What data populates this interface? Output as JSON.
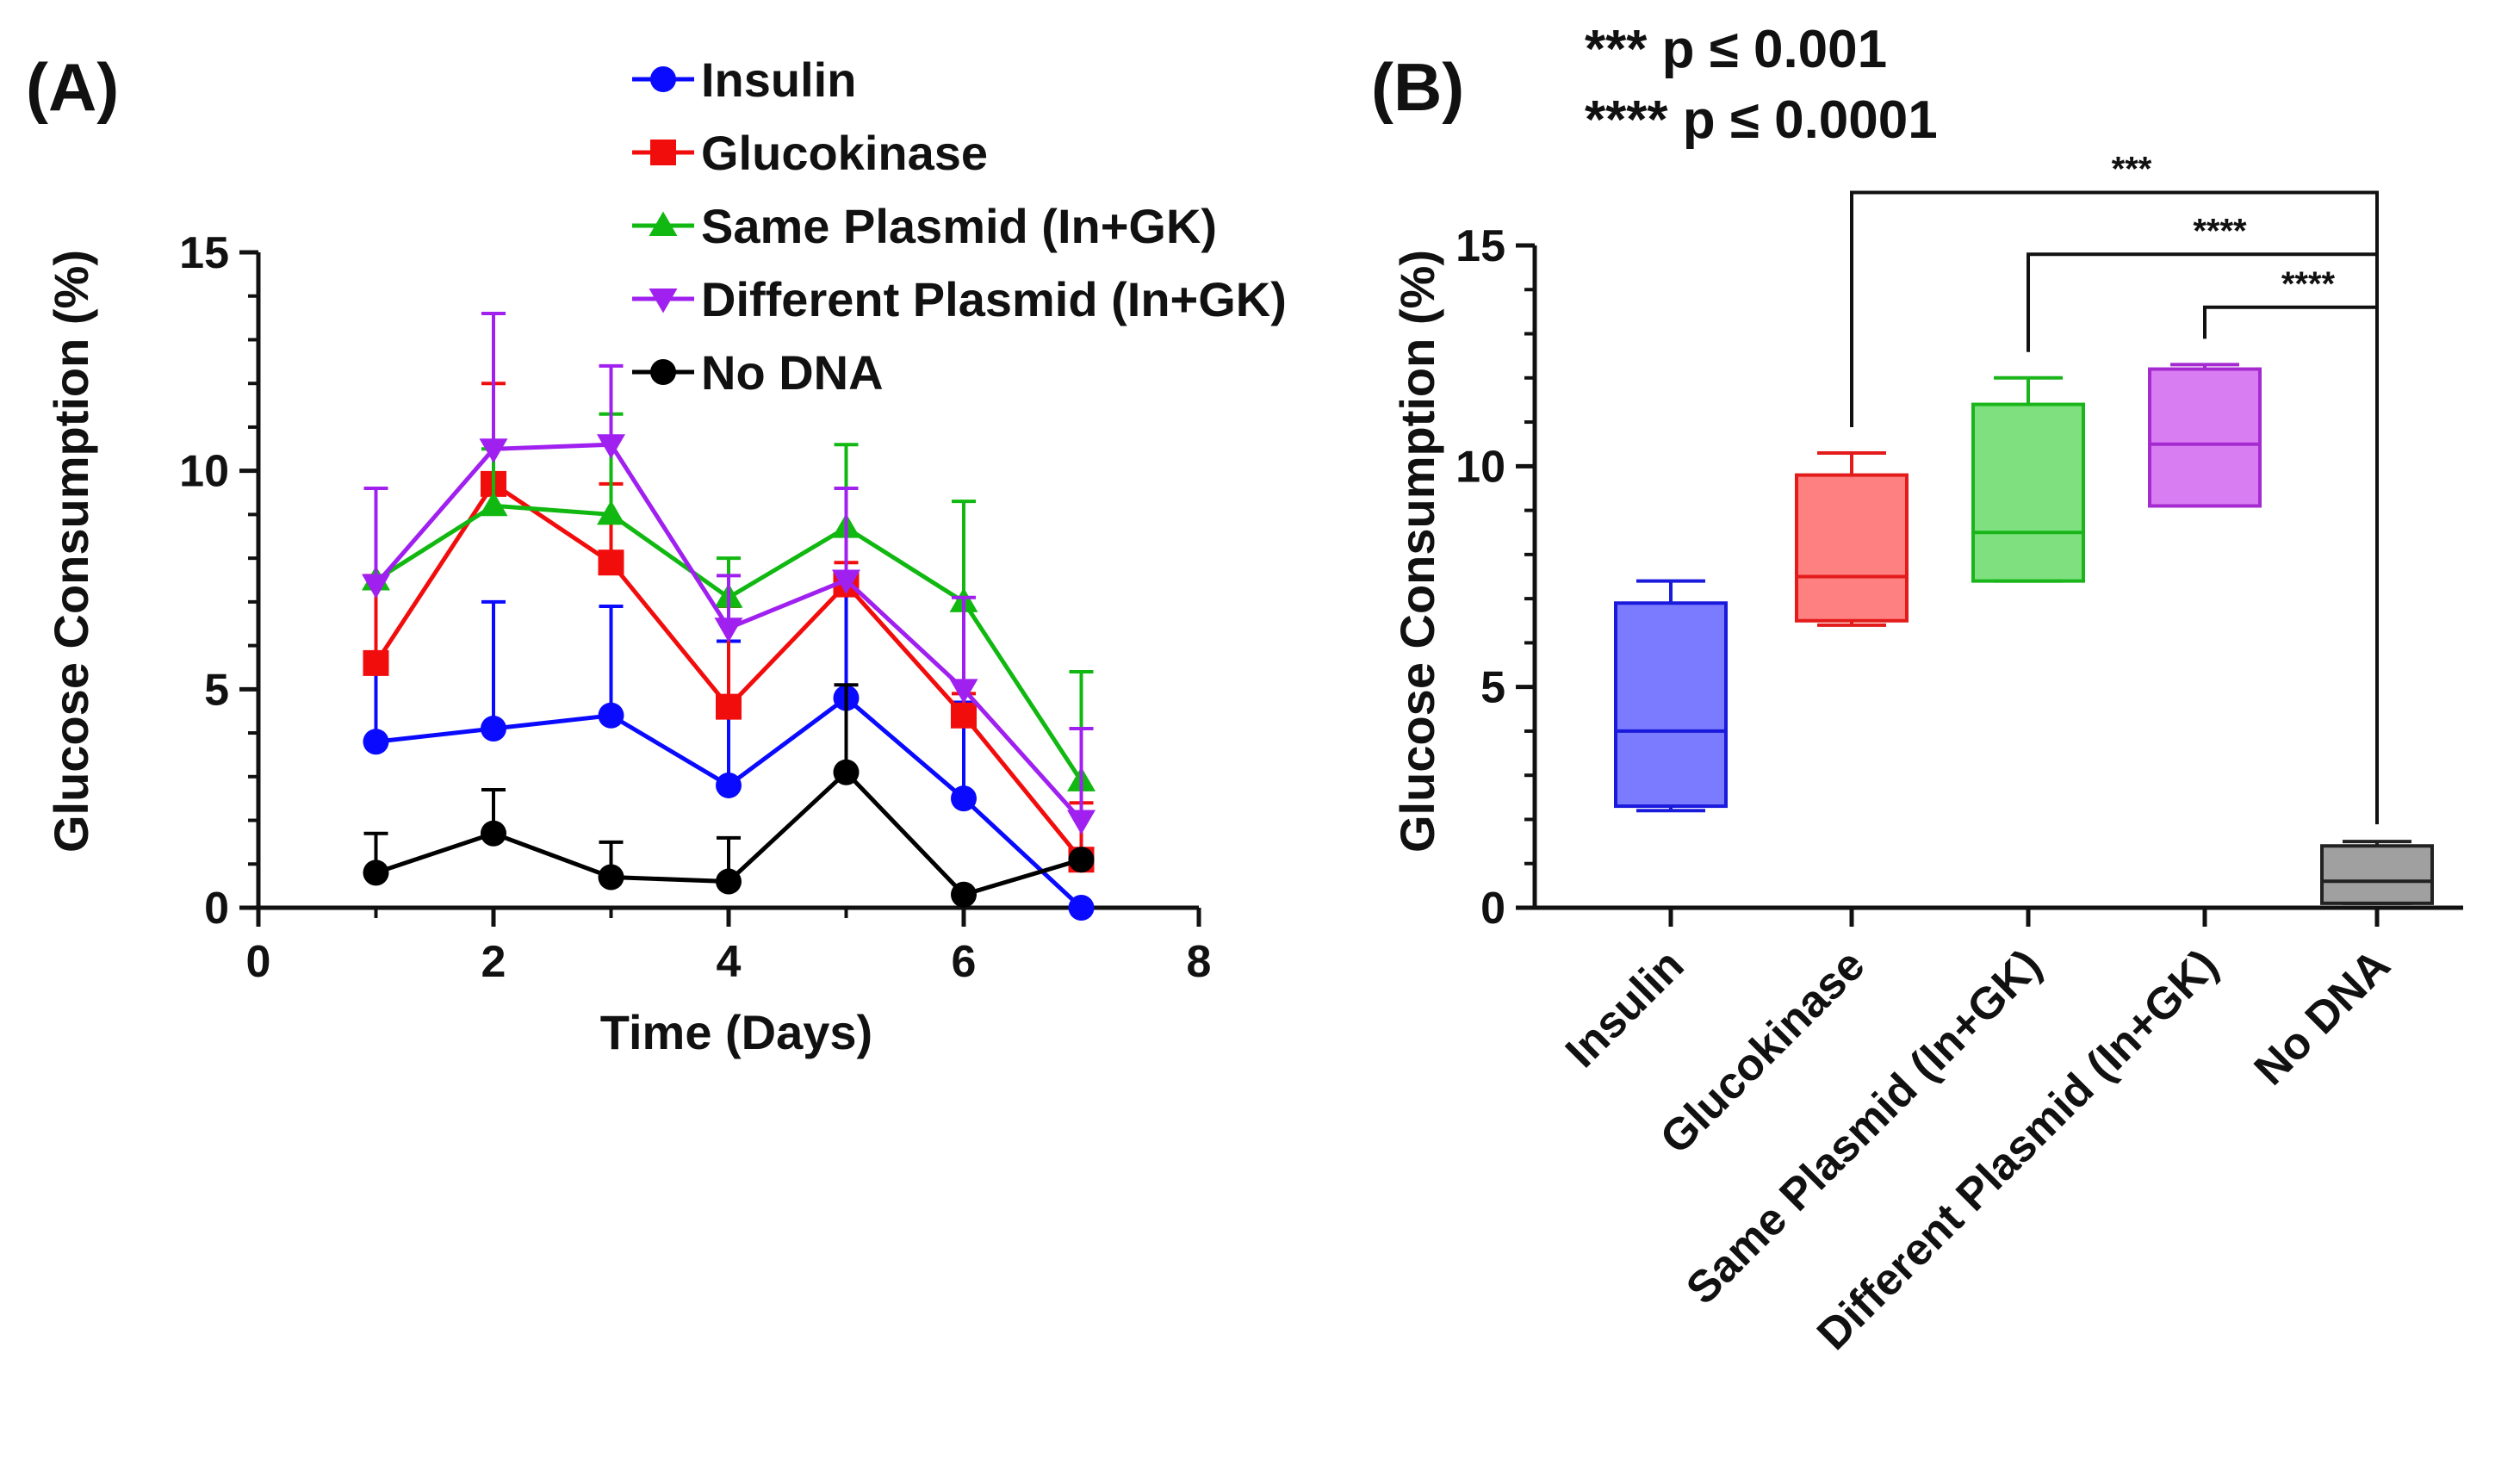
{
  "chart_data": [
    {
      "panel": "(A)",
      "type": "line",
      "xlabel": "Time (Days)",
      "ylabel": "Glucose Consumption (%)",
      "xlim": [
        0,
        8
      ],
      "ylim": [
        0,
        15
      ],
      "xticks": [
        "0",
        "2",
        "4",
        "6",
        "8"
      ],
      "yticks": [
        "0",
        "5",
        "10",
        "15"
      ],
      "x": [
        1,
        2,
        3,
        4,
        5,
        6,
        7
      ],
      "legend_position": "top-center",
      "series": [
        {
          "name": "Insulin",
          "color": "#0a0aff",
          "marker": "circle",
          "values": [
            3.8,
            4.1,
            4.4,
            2.8,
            4.8,
            2.5,
            0.0
          ],
          "errors": [
            1.8,
            2.9,
            2.5,
            3.3,
            2.8,
            2.2,
            0.0
          ]
        },
        {
          "name": "Glucokinase",
          "color": "#f20d0d",
          "marker": "square",
          "values": [
            5.6,
            9.7,
            7.9,
            4.6,
            7.4,
            4.4,
            1.1
          ],
          "errors": [
            2.0,
            2.3,
            1.8,
            2.3,
            0.5,
            0.5,
            1.3
          ]
        },
        {
          "name": "Same Plasmid (In+GK)",
          "color": "#11b811",
          "marker": "triangle-up",
          "values": [
            7.5,
            9.2,
            9.0,
            7.1,
            8.7,
            7.0,
            2.9
          ],
          "errors": [
            2.1,
            1.3,
            2.3,
            0.9,
            1.9,
            2.3,
            2.5
          ]
        },
        {
          "name": "Different Plasmid (In+GK)",
          "color": "#a020f0",
          "marker": "triangle-down",
          "values": [
            7.4,
            10.5,
            10.6,
            6.4,
            7.5,
            5.0,
            2.0
          ],
          "errors": [
            2.2,
            3.1,
            1.8,
            1.2,
            2.1,
            2.1,
            2.1
          ]
        },
        {
          "name": "No DNA",
          "color": "#000000",
          "marker": "circle",
          "values": [
            0.8,
            1.7,
            0.7,
            0.6,
            3.1,
            0.3,
            1.1
          ],
          "errors": [
            0.9,
            1.0,
            0.8,
            1.0,
            2.0,
            0.0,
            0.0
          ]
        }
      ]
    },
    {
      "panel": "(B)",
      "type": "box",
      "ylabel": "Glucose Consumption (%)",
      "ylim": [
        0,
        15
      ],
      "yticks": [
        "0",
        "5",
        "10",
        "15"
      ],
      "categories": [
        "Insulin",
        "Glucokinase",
        "Same Plasmid (In+GK)",
        "Different Plasmid (In+GK)",
        "No DNA"
      ],
      "boxes": [
        {
          "name": "Insulin",
          "min": 2.2,
          "q1": 2.3,
          "median": 4.0,
          "q3": 6.9,
          "max": 7.4,
          "fill": "#7b7bff",
          "stroke": "#1a1add"
        },
        {
          "name": "Glucokinase",
          "min": 6.4,
          "q1": 6.5,
          "median": 7.5,
          "q3": 9.8,
          "max": 10.3,
          "fill": "#ff8080",
          "stroke": "#e31b1b"
        },
        {
          "name": "Same Plasmid (In+GK)",
          "min": 7.4,
          "q1": 7.4,
          "median": 8.5,
          "q3": 11.4,
          "max": 12.0,
          "fill": "#7ee07e",
          "stroke": "#1ab51a"
        },
        {
          "name": "Different Plasmid (In+GK)",
          "min": 9.1,
          "q1": 9.1,
          "median": 10.5,
          "q3": 12.2,
          "max": 12.3,
          "fill": "#d97ef2",
          "stroke": "#a52ad0"
        },
        {
          "name": "No DNA",
          "min": 0.1,
          "q1": 0.1,
          "median": 0.6,
          "q3": 1.4,
          "max": 1.5,
          "fill": "#a0a0a0",
          "stroke": "#222222"
        }
      ],
      "significance": [
        {
          "from": "Glucokinase",
          "to": "No DNA",
          "label": "***",
          "y": 16.2
        },
        {
          "from": "Same Plasmid (In+GK)",
          "to": "No DNA",
          "label": "****",
          "y": 14.8
        },
        {
          "from": "Different Plasmid (In+GK)",
          "to": "No DNA",
          "label": "****",
          "y": 13.6
        }
      ],
      "notes": [
        "*** p ≤ 0.001",
        "**** p ≤ 0.0001"
      ]
    }
  ]
}
